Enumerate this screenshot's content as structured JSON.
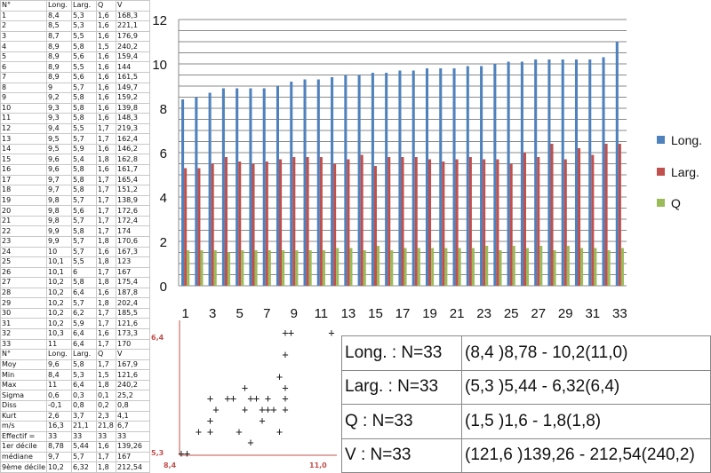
{
  "table": {
    "header": [
      "N°",
      "Long.",
      "Larg.",
      "Q",
      "V"
    ],
    "rows": [
      [
        "1",
        "8,4",
        "5,3",
        "1,6",
        "168,3"
      ],
      [
        "2",
        "8,5",
        "5,3",
        "1,6",
        "221,1"
      ],
      [
        "3",
        "8,7",
        "5,5",
        "1,6",
        "176,9"
      ],
      [
        "4",
        "8,9",
        "5,8",
        "1,5",
        "240,2"
      ],
      [
        "5",
        "8,9",
        "5,6",
        "1,6",
        "159,4"
      ],
      [
        "6",
        "8,9",
        "5,5",
        "1,6",
        "144"
      ],
      [
        "7",
        "8,9",
        "5,6",
        "1,6",
        "161,5"
      ],
      [
        "8",
        "9",
        "5,7",
        "1,6",
        "149,7"
      ],
      [
        "9",
        "9,2",
        "5,8",
        "1,6",
        "159,2"
      ],
      [
        "10",
        "9,3",
        "5,8",
        "1,6",
        "139,8"
      ],
      [
        "11",
        "9,3",
        "5,8",
        "1,6",
        "148,3"
      ],
      [
        "12",
        "9,4",
        "5,5",
        "1,7",
        "219,3"
      ],
      [
        "13",
        "9,5",
        "5,7",
        "1,7",
        "162,4"
      ],
      [
        "14",
        "9,5",
        "5,9",
        "1,6",
        "146,2"
      ],
      [
        "15",
        "9,6",
        "5,4",
        "1,8",
        "162,8"
      ],
      [
        "16",
        "9,6",
        "5,8",
        "1,6",
        "161,7"
      ],
      [
        "17",
        "9,7",
        "5,8",
        "1,7",
        "165,4"
      ],
      [
        "18",
        "9,7",
        "5,8",
        "1,7",
        "151,2"
      ],
      [
        "19",
        "9,8",
        "5,7",
        "1,7",
        "138,9"
      ],
      [
        "20",
        "9,8",
        "5,6",
        "1,7",
        "172,6"
      ],
      [
        "21",
        "9,8",
        "5,7",
        "1,7",
        "172,4"
      ],
      [
        "22",
        "9,9",
        "5,8",
        "1,7",
        "174"
      ],
      [
        "23",
        "9,9",
        "5,7",
        "1,8",
        "170,6"
      ],
      [
        "24",
        "10",
        "5,7",
        "1,6",
        "167,3"
      ],
      [
        "25",
        "10,1",
        "5,5",
        "1,8",
        "123"
      ],
      [
        "26",
        "10,1",
        "6",
        "1,7",
        "167"
      ],
      [
        "27",
        "10,2",
        "5,8",
        "1,8",
        "175,4"
      ],
      [
        "28",
        "10,2",
        "6,4",
        "1,6",
        "187,8"
      ],
      [
        "29",
        "10,2",
        "5,7",
        "1,8",
        "202,4"
      ],
      [
        "30",
        "10,2",
        "6,2",
        "1,7",
        "185,5"
      ],
      [
        "31",
        "10,2",
        "5,9",
        "1,7",
        "121,6"
      ],
      [
        "32",
        "10,3",
        "6,4",
        "1,6",
        "173,3"
      ],
      [
        "33",
        "11",
        "6,4",
        "1,7",
        "170"
      ]
    ],
    "stats_header": [
      "N°",
      "Long.",
      "Larg.",
      "Q",
      "V"
    ],
    "stats": [
      [
        "Moy",
        "9,6",
        "5,8",
        "1,7",
        "167,9"
      ],
      [
        "Min",
        "8,4",
        "5,3",
        "1,5",
        "121,6"
      ],
      [
        "Max",
        "11",
        "6,4",
        "1,8",
        "240,2"
      ],
      [
        "Sigma",
        "0,6",
        "0,3",
        "0,1",
        "25,2"
      ],
      [
        "Diss",
        "-0,1",
        "0,8",
        "0,2",
        "0,8"
      ],
      [
        "Kurt",
        "2,6",
        "3,7",
        "2,3",
        "4,1"
      ],
      [
        "m/s",
        "16,3",
        "21,1",
        "21,8",
        "6,7"
      ],
      [
        "Effectif =",
        "33",
        "33",
        "33",
        "33"
      ],
      [
        "1er décile",
        "8,78",
        "5,44",
        "1,6",
        "139,26"
      ],
      [
        "médiane",
        "9,7",
        "5,7",
        "1,7",
        "167"
      ],
      [
        "9ème décile",
        "10,2",
        "6,32",
        "1,8",
        "212,54"
      ]
    ]
  },
  "chart_data": [
    {
      "type": "bar",
      "categories": [
        1,
        2,
        3,
        4,
        5,
        6,
        7,
        8,
        9,
        10,
        11,
        12,
        13,
        14,
        15,
        16,
        17,
        18,
        19,
        20,
        21,
        22,
        23,
        24,
        25,
        26,
        27,
        28,
        29,
        30,
        31,
        32,
        33
      ],
      "tick_labels": [
        "1",
        "3",
        "5",
        "7",
        "9",
        "11",
        "13",
        "15",
        "17",
        "19",
        "21",
        "23",
        "25",
        "27",
        "29",
        "31",
        "33"
      ],
      "y_ticks": [
        "0",
        "2",
        "4",
        "6",
        "8",
        "10",
        "12"
      ],
      "ylim": [
        0,
        12
      ],
      "grid": true,
      "legend_position": "right",
      "series": [
        {
          "name": "Long.",
          "color": "#4f81bd",
          "values": [
            8.4,
            8.5,
            8.7,
            8.9,
            8.9,
            8.9,
            8.9,
            9,
            9.2,
            9.3,
            9.3,
            9.4,
            9.5,
            9.5,
            9.6,
            9.6,
            9.7,
            9.7,
            9.8,
            9.8,
            9.8,
            9.9,
            9.9,
            10,
            10.1,
            10.1,
            10.2,
            10.2,
            10.2,
            10.2,
            10.2,
            10.3,
            11
          ]
        },
        {
          "name": "Larg.",
          "color": "#c0504d",
          "values": [
            5.3,
            5.3,
            5.5,
            5.8,
            5.6,
            5.5,
            5.6,
            5.7,
            5.8,
            5.8,
            5.8,
            5.5,
            5.7,
            5.9,
            5.4,
            5.8,
            5.8,
            5.8,
            5.7,
            5.6,
            5.7,
            5.8,
            5.7,
            5.7,
            5.5,
            6,
            5.8,
            6.4,
            5.7,
            6.2,
            5.9,
            6.4,
            6.4
          ]
        },
        {
          "name": "Q",
          "color": "#9bbb59",
          "values": [
            1.6,
            1.6,
            1.6,
            1.5,
            1.6,
            1.6,
            1.6,
            1.6,
            1.6,
            1.6,
            1.6,
            1.7,
            1.7,
            1.6,
            1.8,
            1.6,
            1.7,
            1.7,
            1.7,
            1.7,
            1.7,
            1.7,
            1.8,
            1.6,
            1.8,
            1.7,
            1.8,
            1.6,
            1.8,
            1.7,
            1.7,
            1.6,
            1.7
          ]
        }
      ]
    },
    {
      "type": "scatter",
      "xlim": [
        8.4,
        11
      ],
      "ylim": [
        5.3,
        6.4
      ],
      "x_min_label": "8,4",
      "x_max_label": "11,0",
      "y_min_label": "5,3",
      "y_max_label": "6,4",
      "x": [
        8.4,
        8.5,
        8.7,
        8.9,
        8.9,
        8.9,
        8.9,
        9,
        9.2,
        9.3,
        9.3,
        9.4,
        9.5,
        9.5,
        9.6,
        9.6,
        9.7,
        9.7,
        9.8,
        9.8,
        9.8,
        9.9,
        9.9,
        10,
        10.1,
        10.1,
        10.2,
        10.2,
        10.2,
        10.2,
        10.2,
        10.3,
        11
      ],
      "y": [
        5.3,
        5.3,
        5.5,
        5.8,
        5.6,
        5.5,
        5.6,
        5.7,
        5.8,
        5.8,
        5.8,
        5.5,
        5.7,
        5.9,
        5.4,
        5.8,
        5.8,
        5.8,
        5.7,
        5.6,
        5.7,
        5.8,
        5.7,
        5.7,
        5.5,
        6,
        5.8,
        6.4,
        5.7,
        6.2,
        5.9,
        6.4,
        6.4
      ],
      "marker": "+"
    }
  ],
  "summary": [
    {
      "label": "Long. : N=33",
      "value": "(8,4 )8,78 - 10,2(11,0)"
    },
    {
      "label": "Larg. : N=33",
      "value": "(5,3 )5,44 - 6,32(6,4)"
    },
    {
      "label": "Q : N=33",
      "value": "(1,5 )1,6 - 1,8(1,8)"
    },
    {
      "label": "V : N=33",
      "value": "(121,6 )139,26 - 212,54(240,2)"
    }
  ]
}
